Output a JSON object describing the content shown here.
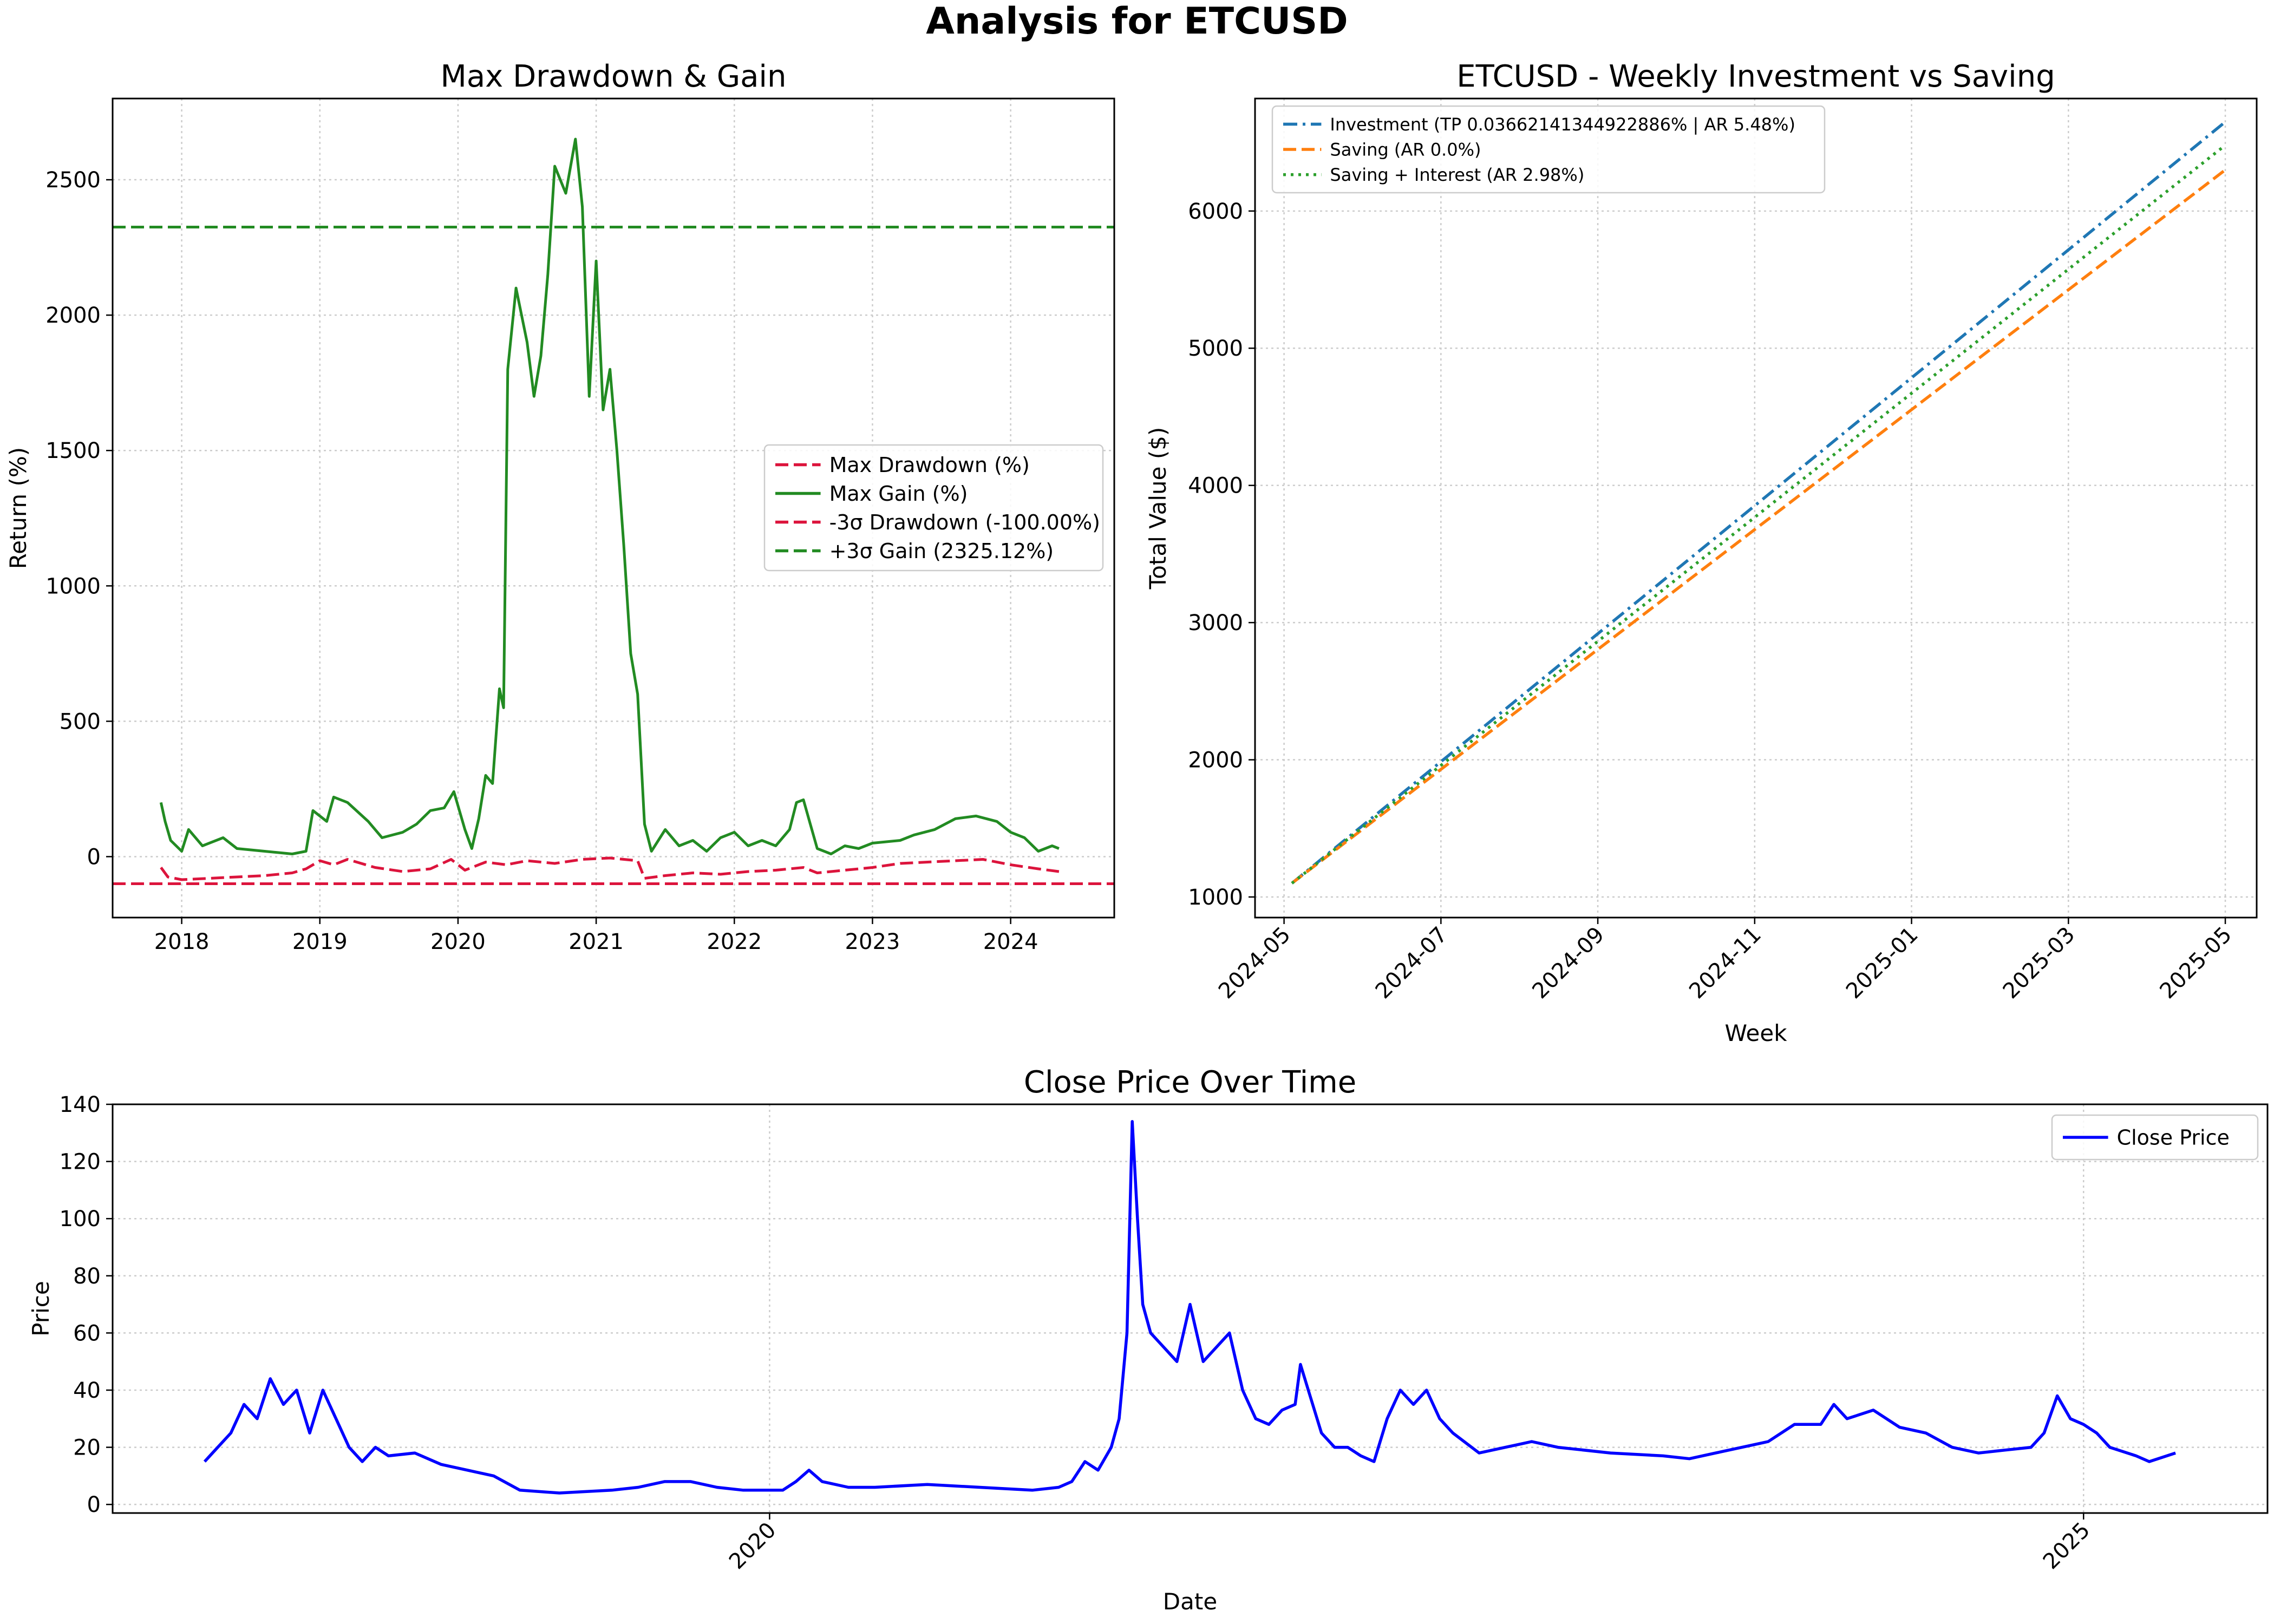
{
  "figure": {
    "title": "Analysis for ETCUSD"
  },
  "chart_data": [
    {
      "id": "drawdown",
      "type": "line",
      "title": "Max Drawdown & Gain",
      "xlabel": "",
      "ylabel": "Return (%)",
      "x_ticks": [
        "2018",
        "2019",
        "2020",
        "2021",
        "2022",
        "2023",
        "2024"
      ],
      "y_ticks": [
        0,
        500,
        1000,
        1500,
        2000,
        2500
      ],
      "xlim": [
        2017.5,
        2024.75
      ],
      "ylim": [
        -225,
        2800
      ],
      "grid": true,
      "legend_position": "center-right",
      "series": [
        {
          "name": "Max Drawdown (%)",
          "style": "dashed",
          "color": "#dc143c",
          "points": [
            [
              2017.85,
              -40
            ],
            [
              2017.9,
              -75
            ],
            [
              2018.0,
              -85
            ],
            [
              2018.2,
              -80
            ],
            [
              2018.4,
              -75
            ],
            [
              2018.6,
              -70
            ],
            [
              2018.8,
              -60
            ],
            [
              2018.9,
              -45
            ],
            [
              2019.0,
              -15
            ],
            [
              2019.1,
              -30
            ],
            [
              2019.2,
              -10
            ],
            [
              2019.4,
              -40
            ],
            [
              2019.6,
              -55
            ],
            [
              2019.8,
              -45
            ],
            [
              2019.95,
              -10
            ],
            [
              2020.05,
              -50
            ],
            [
              2020.2,
              -20
            ],
            [
              2020.35,
              -30
            ],
            [
              2020.5,
              -15
            ],
            [
              2020.7,
              -25
            ],
            [
              2020.9,
              -10
            ],
            [
              2021.1,
              -5
            ],
            [
              2021.3,
              -15
            ],
            [
              2021.35,
              -80
            ],
            [
              2021.5,
              -70
            ],
            [
              2021.7,
              -60
            ],
            [
              2021.9,
              -65
            ],
            [
              2022.1,
              -55
            ],
            [
              2022.3,
              -50
            ],
            [
              2022.5,
              -40
            ],
            [
              2022.6,
              -60
            ],
            [
              2022.8,
              -50
            ],
            [
              2023.0,
              -40
            ],
            [
              2023.2,
              -25
            ],
            [
              2023.4,
              -20
            ],
            [
              2023.6,
              -15
            ],
            [
              2023.8,
              -10
            ],
            [
              2024.0,
              -30
            ],
            [
              2024.2,
              -45
            ],
            [
              2024.35,
              -55
            ]
          ]
        },
        {
          "name": "Max Gain (%)",
          "style": "solid",
          "color": "#228b22",
          "points": [
            [
              2017.85,
              200
            ],
            [
              2017.88,
              130
            ],
            [
              2017.92,
              60
            ],
            [
              2018.0,
              20
            ],
            [
              2018.05,
              100
            ],
            [
              2018.15,
              40
            ],
            [
              2018.3,
              70
            ],
            [
              2018.4,
              30
            ],
            [
              2018.6,
              20
            ],
            [
              2018.8,
              10
            ],
            [
              2018.9,
              20
            ],
            [
              2018.95,
              170
            ],
            [
              2019.05,
              130
            ],
            [
              2019.1,
              220
            ],
            [
              2019.2,
              200
            ],
            [
              2019.35,
              130
            ],
            [
              2019.45,
              70
            ],
            [
              2019.6,
              90
            ],
            [
              2019.7,
              120
            ],
            [
              2019.8,
              170
            ],
            [
              2019.9,
              180
            ],
            [
              2019.97,
              240
            ],
            [
              2020.05,
              100
            ],
            [
              2020.1,
              30
            ],
            [
              2020.15,
              140
            ],
            [
              2020.2,
              300
            ],
            [
              2020.25,
              270
            ],
            [
              2020.3,
              620
            ],
            [
              2020.33,
              550
            ],
            [
              2020.36,
              1800
            ],
            [
              2020.42,
              2100
            ],
            [
              2020.5,
              1900
            ],
            [
              2020.55,
              1700
            ],
            [
              2020.6,
              1850
            ],
            [
              2020.65,
              2150
            ],
            [
              2020.7,
              2550
            ],
            [
              2020.78,
              2450
            ],
            [
              2020.85,
              2650
            ],
            [
              2020.9,
              2400
            ],
            [
              2020.95,
              1700
            ],
            [
              2021.0,
              2200
            ],
            [
              2021.05,
              1650
            ],
            [
              2021.1,
              1800
            ],
            [
              2021.15,
              1500
            ],
            [
              2021.2,
              1150
            ],
            [
              2021.25,
              750
            ],
            [
              2021.3,
              600
            ],
            [
              2021.35,
              120
            ],
            [
              2021.4,
              20
            ],
            [
              2021.5,
              100
            ],
            [
              2021.6,
              40
            ],
            [
              2021.7,
              60
            ],
            [
              2021.8,
              20
            ],
            [
              2021.9,
              70
            ],
            [
              2022.0,
              90
            ],
            [
              2022.1,
              40
            ],
            [
              2022.2,
              60
            ],
            [
              2022.3,
              40
            ],
            [
              2022.4,
              100
            ],
            [
              2022.45,
              200
            ],
            [
              2022.5,
              210
            ],
            [
              2022.55,
              120
            ],
            [
              2022.6,
              30
            ],
            [
              2022.7,
              10
            ],
            [
              2022.8,
              40
            ],
            [
              2022.9,
              30
            ],
            [
              2023.0,
              50
            ],
            [
              2023.2,
              60
            ],
            [
              2023.3,
              80
            ],
            [
              2023.45,
              100
            ],
            [
              2023.6,
              140
            ],
            [
              2023.75,
              150
            ],
            [
              2023.9,
              130
            ],
            [
              2024.0,
              90
            ],
            [
              2024.1,
              70
            ],
            [
              2024.2,
              20
            ],
            [
              2024.3,
              40
            ],
            [
              2024.35,
              30
            ]
          ]
        },
        {
          "name": "-3σ Drawdown (-100.00%)",
          "style": "dashed",
          "color": "#dc143c",
          "hline": -100
        },
        {
          "name": "+3σ Gain (2325.12%)",
          "style": "dashed",
          "color": "#228b22",
          "hline": 2325.12
        }
      ]
    },
    {
      "id": "investment",
      "type": "line",
      "title": "ETCUSD - Weekly Investment vs Saving",
      "xlabel": "Week",
      "ylabel": "Total Value ($)",
      "x_ticks": [
        "2024-05",
        "2024-07",
        "2024-09",
        "2024-11",
        "2025-01",
        "2025-03",
        "2025-05"
      ],
      "y_ticks": [
        1000,
        2000,
        3000,
        4000,
        5000,
        6000
      ],
      "xlim": [
        -0.37,
        12.4
      ],
      "ylim": [
        850,
        6820
      ],
      "grid": true,
      "legend_position": "top-left",
      "series": [
        {
          "name": "Investment (TP 0.03662141344922886% | AR 5.48%)",
          "style": "dashdot",
          "color": "#1f77b4",
          "points": [
            [
              0.1,
              1100
            ],
            [
              12.0,
              6650
            ]
          ]
        },
        {
          "name": "Saving (AR 0.0%)",
          "style": "dashed",
          "color": "#ff7f0e",
          "points": [
            [
              0.1,
              1100
            ],
            [
              12.0,
              6300
            ]
          ]
        },
        {
          "name": "Saving + Interest (AR 2.98%)",
          "style": "dotted",
          "color": "#2ca02c",
          "points": [
            [
              0.1,
              1100
            ],
            [
              12.0,
              6480
            ]
          ]
        }
      ]
    },
    {
      "id": "price",
      "type": "line",
      "title": "Close Price Over Time",
      "xlabel": "Date",
      "ylabel": "Price",
      "x_ticks": [
        "2020",
        "2025"
      ],
      "y_ticks": [
        0,
        20,
        40,
        60,
        80,
        100,
        120,
        140
      ],
      "xlim": [
        2017.5,
        2025.7
      ],
      "ylim": [
        -3,
        140
      ],
      "grid": true,
      "legend_position": "top-right",
      "series": [
        {
          "name": "Close Price",
          "style": "solid",
          "color": "#0000ff",
          "points": [
            [
              2017.85,
              15
            ],
            [
              2017.9,
              20
            ],
            [
              2017.95,
              25
            ],
            [
              2018.0,
              35
            ],
            [
              2018.05,
              30
            ],
            [
              2018.1,
              44
            ],
            [
              2018.15,
              35
            ],
            [
              2018.2,
              40
            ],
            [
              2018.25,
              25
            ],
            [
              2018.3,
              40
            ],
            [
              2018.35,
              30
            ],
            [
              2018.4,
              20
            ],
            [
              2018.45,
              15
            ],
            [
              2018.5,
              20
            ],
            [
              2018.55,
              17
            ],
            [
              2018.65,
              18
            ],
            [
              2018.75,
              14
            ],
            [
              2018.85,
              12
            ],
            [
              2018.95,
              10
            ],
            [
              2019.05,
              5
            ],
            [
              2019.2,
              4
            ],
            [
              2019.4,
              5
            ],
            [
              2019.5,
              6
            ],
            [
              2019.6,
              8
            ],
            [
              2019.7,
              8
            ],
            [
              2019.8,
              6
            ],
            [
              2019.9,
              5
            ],
            [
              2020.0,
              5
            ],
            [
              2020.05,
              5
            ],
            [
              2020.1,
              8
            ],
            [
              2020.15,
              12
            ],
            [
              2020.2,
              8
            ],
            [
              2020.3,
              6
            ],
            [
              2020.4,
              6
            ],
            [
              2020.6,
              7
            ],
            [
              2020.8,
              6
            ],
            [
              2021.0,
              5
            ],
            [
              2021.1,
              6
            ],
            [
              2021.15,
              8
            ],
            [
              2021.2,
              15
            ],
            [
              2021.25,
              12
            ],
            [
              2021.3,
              20
            ],
            [
              2021.33,
              30
            ],
            [
              2021.36,
              60
            ],
            [
              2021.38,
              134
            ],
            [
              2021.4,
              100
            ],
            [
              2021.42,
              70
            ],
            [
              2021.45,
              60
            ],
            [
              2021.5,
              55
            ],
            [
              2021.55,
              50
            ],
            [
              2021.6,
              70
            ],
            [
              2021.65,
              50
            ],
            [
              2021.7,
              55
            ],
            [
              2021.75,
              60
            ],
            [
              2021.8,
              40
            ],
            [
              2021.85,
              30
            ],
            [
              2021.9,
              28
            ],
            [
              2021.95,
              33
            ],
            [
              2022.0,
              35
            ],
            [
              2022.02,
              49
            ],
            [
              2022.05,
              40
            ],
            [
              2022.1,
              25
            ],
            [
              2022.15,
              20
            ],
            [
              2022.2,
              20
            ],
            [
              2022.25,
              17
            ],
            [
              2022.3,
              15
            ],
            [
              2022.35,
              30
            ],
            [
              2022.4,
              40
            ],
            [
              2022.45,
              35
            ],
            [
              2022.5,
              40
            ],
            [
              2022.55,
              30
            ],
            [
              2022.6,
              25
            ],
            [
              2022.7,
              18
            ],
            [
              2022.8,
              20
            ],
            [
              2022.9,
              22
            ],
            [
              2023.0,
              20
            ],
            [
              2023.2,
              18
            ],
            [
              2023.4,
              17
            ],
            [
              2023.5,
              16
            ],
            [
              2023.6,
              18
            ],
            [
              2023.7,
              20
            ],
            [
              2023.8,
              22
            ],
            [
              2023.9,
              28
            ],
            [
              2024.0,
              28
            ],
            [
              2024.05,
              35
            ],
            [
              2024.1,
              30
            ],
            [
              2024.2,
              33
            ],
            [
              2024.3,
              27
            ],
            [
              2024.4,
              25
            ],
            [
              2024.5,
              20
            ],
            [
              2024.6,
              18
            ],
            [
              2024.7,
              19
            ],
            [
              2024.8,
              20
            ],
            [
              2024.85,
              25
            ],
            [
              2024.9,
              38
            ],
            [
              2024.95,
              30
            ],
            [
              2025.0,
              28
            ],
            [
              2025.05,
              25
            ],
            [
              2025.1,
              20
            ],
            [
              2025.2,
              17
            ],
            [
              2025.25,
              15
            ],
            [
              2025.35,
              18
            ]
          ]
        }
      ]
    }
  ]
}
